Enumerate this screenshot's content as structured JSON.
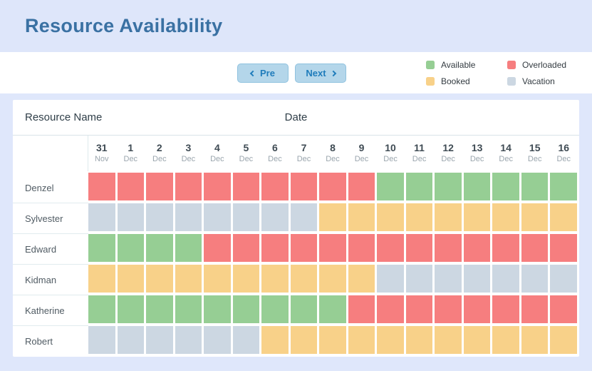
{
  "header": {
    "title": "Resource Availability"
  },
  "toolbar": {
    "prev_label": "Pre",
    "next_label": "Next"
  },
  "legend": {
    "items": [
      {
        "id": "available",
        "label": "Available",
        "color": "#96ce94"
      },
      {
        "id": "overloaded",
        "label": "Overloaded",
        "color": "#f67e7f"
      },
      {
        "id": "booked",
        "label": "Booked",
        "color": "#f8d189"
      },
      {
        "id": "vacation",
        "label": "Vacation",
        "color": "#ccd7e2"
      }
    ]
  },
  "table": {
    "resource_header": "Resource Name",
    "date_header": "Date",
    "status_colors": {
      "available": "#96ce94",
      "overloaded": "#f67e7f",
      "booked": "#f8d189",
      "vacation": "#ccd7e2"
    },
    "columns": [
      {
        "day": "31",
        "month": "Nov"
      },
      {
        "day": "1",
        "month": "Dec"
      },
      {
        "day": "2",
        "month": "Dec"
      },
      {
        "day": "3",
        "month": "Dec"
      },
      {
        "day": "4",
        "month": "Dec"
      },
      {
        "day": "5",
        "month": "Dec"
      },
      {
        "day": "6",
        "month": "Dec"
      },
      {
        "day": "7",
        "month": "Dec"
      },
      {
        "day": "8",
        "month": "Dec"
      },
      {
        "day": "9",
        "month": "Dec"
      },
      {
        "day": "10",
        "month": "Dec"
      },
      {
        "day": "11",
        "month": "Dec"
      },
      {
        "day": "12",
        "month": "Dec"
      },
      {
        "day": "13",
        "month": "Dec"
      },
      {
        "day": "14",
        "month": "Dec"
      },
      {
        "day": "15",
        "month": "Dec"
      },
      {
        "day": "16",
        "month": "Dec"
      }
    ],
    "rows": [
      {
        "name": "Denzel",
        "cells": [
          "overloaded",
          "overloaded",
          "overloaded",
          "overloaded",
          "overloaded",
          "overloaded",
          "overloaded",
          "overloaded",
          "overloaded",
          "overloaded",
          "available",
          "available",
          "available",
          "available",
          "available",
          "available",
          "available"
        ]
      },
      {
        "name": "Sylvester",
        "cells": [
          "vacation",
          "vacation",
          "vacation",
          "vacation",
          "vacation",
          "vacation",
          "vacation",
          "vacation",
          "booked",
          "booked",
          "booked",
          "booked",
          "booked",
          "booked",
          "booked",
          "booked",
          "booked"
        ]
      },
      {
        "name": "Edward",
        "cells": [
          "available",
          "available",
          "available",
          "available",
          "overloaded",
          "overloaded",
          "overloaded",
          "overloaded",
          "overloaded",
          "overloaded",
          "overloaded",
          "overloaded",
          "overloaded",
          "overloaded",
          "overloaded",
          "overloaded",
          "overloaded"
        ]
      },
      {
        "name": "Kidman",
        "cells": [
          "booked",
          "booked",
          "booked",
          "booked",
          "booked",
          "booked",
          "booked",
          "booked",
          "booked",
          "booked",
          "vacation",
          "vacation",
          "vacation",
          "vacation",
          "vacation",
          "vacation",
          "vacation"
        ]
      },
      {
        "name": "Katherine",
        "cells": [
          "available",
          "available",
          "available",
          "available",
          "available",
          "available",
          "available",
          "available",
          "available",
          "overloaded",
          "overloaded",
          "overloaded",
          "overloaded",
          "overloaded",
          "overloaded",
          "overloaded",
          "overloaded"
        ]
      },
      {
        "name": "Robert",
        "cells": [
          "vacation",
          "vacation",
          "vacation",
          "vacation",
          "vacation",
          "vacation",
          "booked",
          "booked",
          "booked",
          "booked",
          "booked",
          "booked",
          "booked",
          "booked",
          "booked",
          "booked",
          "booked"
        ]
      }
    ]
  }
}
